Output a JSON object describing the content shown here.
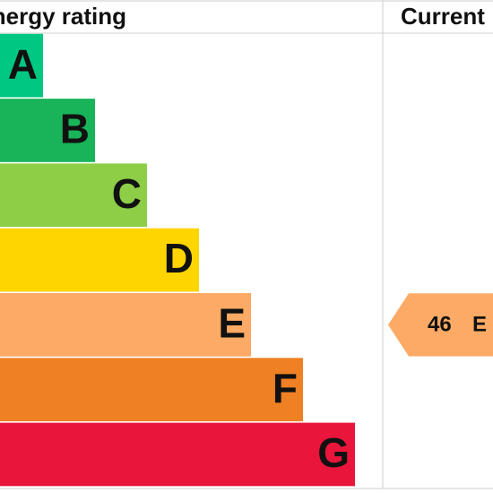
{
  "header": {
    "title": "Energy rating",
    "current": "Current"
  },
  "bands": [
    {
      "letter": "A",
      "color": "#00c781"
    },
    {
      "letter": "B",
      "color": "#19b459"
    },
    {
      "letter": "C",
      "color": "#8dce46"
    },
    {
      "letter": "D",
      "color": "#ffd500"
    },
    {
      "letter": "E",
      "color": "#fcaa65"
    },
    {
      "letter": "F",
      "color": "#ef8023"
    },
    {
      "letter": "G",
      "color": "#e9153b"
    }
  ],
  "current": {
    "value": 46,
    "band": "E",
    "color": "#fcaa65"
  }
}
